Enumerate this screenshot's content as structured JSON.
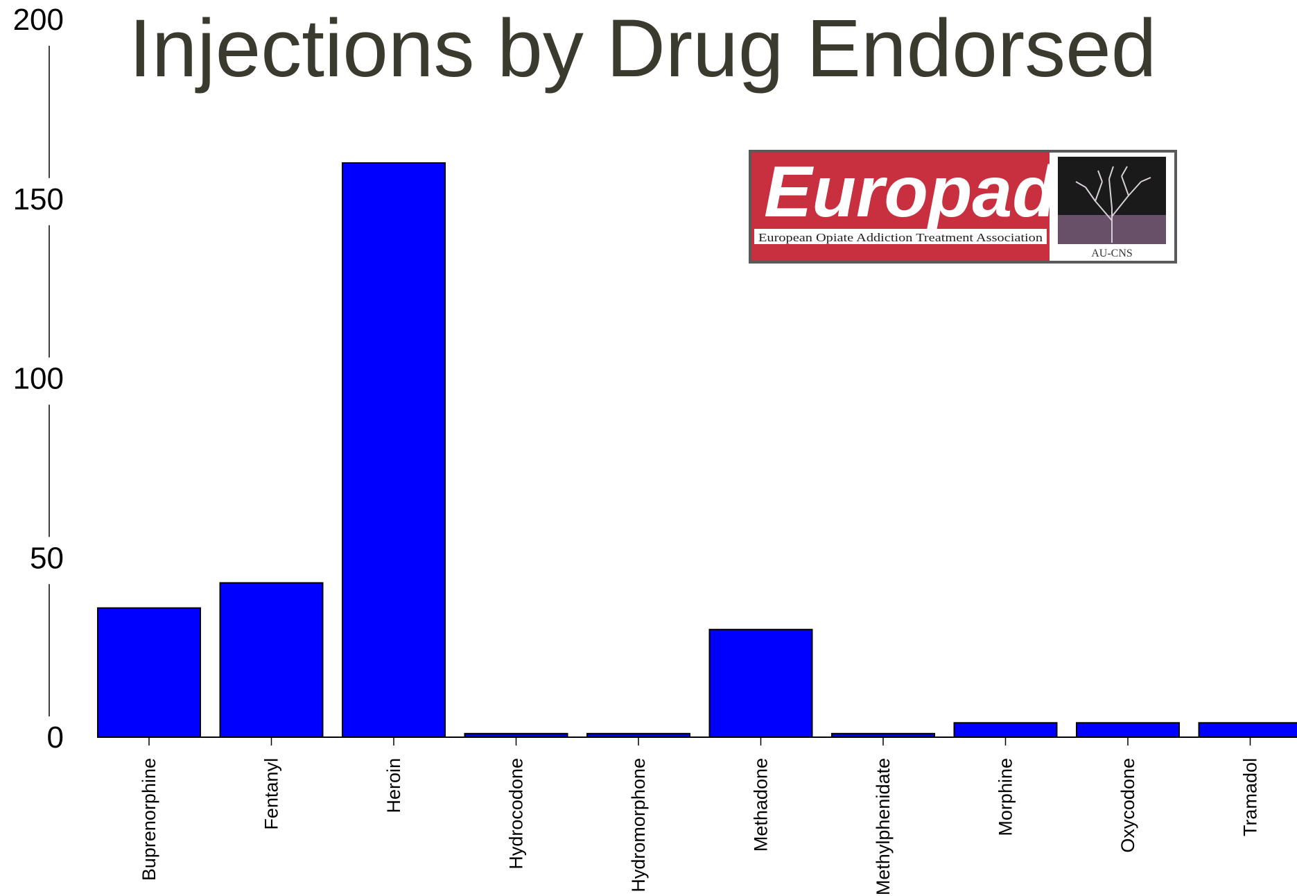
{
  "chart_data": {
    "type": "bar",
    "title": "Injections by Drug Endorsed",
    "xlabel": "",
    "ylabel": "",
    "ylim": [
      0,
      200
    ],
    "yticks": [
      0,
      50,
      100,
      150,
      200
    ],
    "categories": [
      "Buprenorphine",
      "Fentanyl",
      "Heroin",
      "Hydrocodone",
      "Hydromorphone",
      "Methadone",
      "Methylphenidate",
      "Morphine",
      "Oxycodone",
      "Tramadol"
    ],
    "values": [
      36,
      43,
      160,
      1,
      1,
      30,
      1,
      4,
      4,
      4
    ],
    "bar_color": "#0000ff",
    "grid": false
  },
  "logo": {
    "name": "Europad",
    "subtitle": "European Opiate Addiction Treatment Association",
    "partner": "AU-CNS",
    "primary_color": "#c8303f"
  }
}
